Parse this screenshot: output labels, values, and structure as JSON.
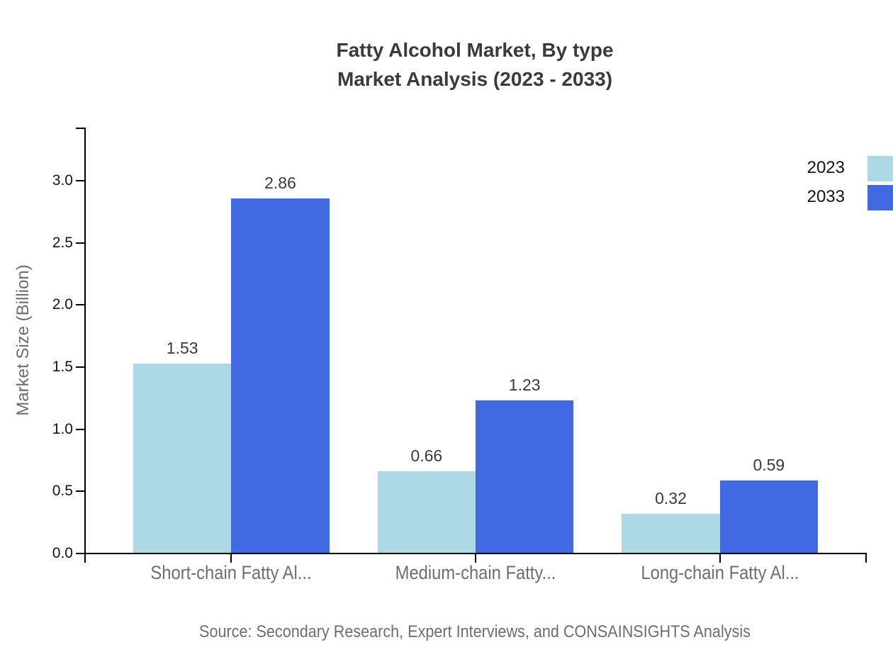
{
  "title": {
    "line1": "Fatty Alcohol Market, By type",
    "line2": "Market Analysis (2023 - 2033)"
  },
  "y_axis_title": "Market Size (Billion)",
  "source": "Source: Secondary Research, Expert Interviews, and CONSAINSIGHTS Analysis",
  "legend": {
    "position": "top-right",
    "items": [
      {
        "label": "2023",
        "color": "#ADD8E6"
      },
      {
        "label": "2033",
        "color": "#4169E1"
      }
    ]
  },
  "colors": {
    "series_2023": "#ADD8E6",
    "series_2033": "#4169E1",
    "axis": "#000000",
    "title_text": "#3a3a3a",
    "muted_text": "#6e6e6e",
    "tick_text": "#141414"
  },
  "chart_data": {
    "type": "bar",
    "title": "Fatty Alcohol Market, By type — Market Analysis (2023 - 2033)",
    "categories": [
      "Short-chain Fatty Al...",
      "Medium-chain Fatty...",
      "Long-chain Fatty Al..."
    ],
    "series": [
      {
        "name": "2023",
        "color": "#ADD8E6",
        "values": [
          1.53,
          0.66,
          0.32
        ]
      },
      {
        "name": "2033",
        "color": "#4169E1",
        "values": [
          2.86,
          1.23,
          0.59
        ]
      }
    ],
    "xlabel": "",
    "ylabel": "Market Size (Billion)",
    "ylim": [
      0.0,
      3.43
    ],
    "yticks": [
      0.0,
      0.5,
      1.0,
      1.5,
      2.0,
      2.5,
      3.0
    ],
    "grid": false,
    "legend_position": "top-right",
    "value_labels": true,
    "value_label_format": "0.00",
    "ytick_format": "0.0"
  }
}
